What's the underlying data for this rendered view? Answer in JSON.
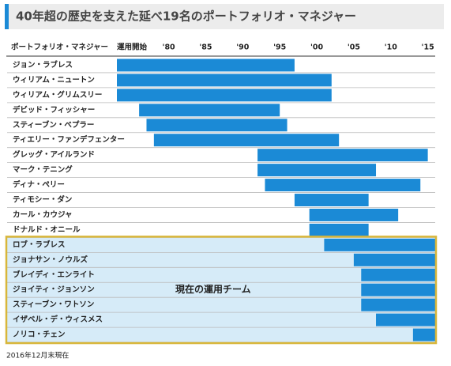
{
  "chart_data": {
    "type": "gantt",
    "title": "40年超の歴史を支えた延べ19名のポートフォリオ・マネジャー",
    "name_header": "ポートフォリオ・マネジャー",
    "start_header": "運用開始",
    "footnote": "2016年12月末現在",
    "color": "#1b8ad6",
    "xlim": [
      1973,
      2016
    ],
    "xticks": [
      {
        "value": 1980,
        "label": "'80"
      },
      {
        "value": 1985,
        "label": "'85"
      },
      {
        "value": 1990,
        "label": "'90"
      },
      {
        "value": 1995,
        "label": "'95"
      },
      {
        "value": 2000,
        "label": "'00"
      },
      {
        "value": 2005,
        "label": "'05"
      },
      {
        "value": 2010,
        "label": "'10"
      },
      {
        "value": 2015,
        "label": "'15"
      }
    ],
    "rows": [
      {
        "name": "ジョン・ラブレス",
        "start": 1973,
        "end": 1997
      },
      {
        "name": "ウィリアム・ニュートン",
        "start": 1973,
        "end": 2002
      },
      {
        "name": "ウィリアム・グリムスリー",
        "start": 1973,
        "end": 2002
      },
      {
        "name": "デビッド・フィッシャー",
        "start": 1976,
        "end": 1995
      },
      {
        "name": "スティーブン・ベプラー",
        "start": 1977,
        "end": 1996
      },
      {
        "name": "ティエリー・ファンデフェンター",
        "start": 1978,
        "end": 2003
      },
      {
        "name": "グレッグ・アイルランド",
        "start": 1992,
        "end": 2015
      },
      {
        "name": "マーク・テニング",
        "start": 1992,
        "end": 2008
      },
      {
        "name": "ディナ・ペリー",
        "start": 1993,
        "end": 2014
      },
      {
        "name": "ティモシー・ダン",
        "start": 1997,
        "end": 2007
      },
      {
        "name": "カール・カウジャ",
        "start": 1999,
        "end": 2011
      },
      {
        "name": "ドナルド・オニール",
        "start": 1999,
        "end": 2007
      }
    ],
    "current_team": {
      "label": "現在の運用チーム",
      "rows": [
        {
          "name": "ロブ・ラブレス",
          "start": 2001,
          "end": 2016
        },
        {
          "name": "ジョナサン・ノウルズ",
          "start": 2005,
          "end": 2016
        },
        {
          "name": "ブレイディ・エンライト",
          "start": 2006,
          "end": 2016
        },
        {
          "name": "ジョイティ・ジョンソン",
          "start": 2006,
          "end": 2016
        },
        {
          "name": "スティーブン・ワトソン",
          "start": 2006,
          "end": 2016
        },
        {
          "name": "イザベル・デ・ウィスメス",
          "start": 2008,
          "end": 2016
        },
        {
          "name": "ノリコ・チェン",
          "start": 2013,
          "end": 2016
        }
      ]
    }
  }
}
